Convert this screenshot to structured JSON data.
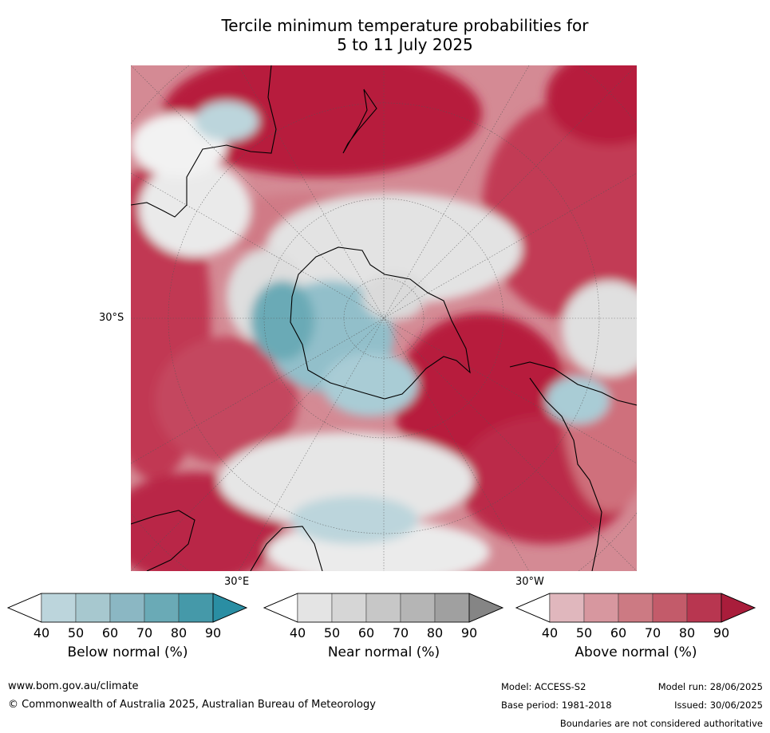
{
  "title": {
    "line1": "Tercile minimum temperature probabilities for",
    "line2": "5 to 11 July 2025"
  },
  "map": {
    "lat_label": "30°S",
    "lon_left_label": "30°E",
    "lon_right_label": "30°W"
  },
  "colorbars": [
    {
      "name": "below",
      "title": "Below normal (%)",
      "ticks": [
        "40",
        "50",
        "60",
        "70",
        "80",
        "90"
      ],
      "colors": [
        "#ffffff",
        "#bcd5dc",
        "#a7c8cf",
        "#8bb7c3",
        "#6aaab6",
        "#4599a9",
        "#2a8ea3"
      ]
    },
    {
      "name": "near",
      "title": "Near normal (%)",
      "ticks": [
        "40",
        "50",
        "60",
        "70",
        "80",
        "90"
      ],
      "colors": [
        "#ffffff",
        "#e4e4e4",
        "#d6d6d6",
        "#c7c7c7",
        "#b5b5b5",
        "#a0a0a0",
        "#858585"
      ]
    },
    {
      "name": "above",
      "title": "Above normal (%)",
      "ticks": [
        "40",
        "50",
        "60",
        "70",
        "80",
        "90"
      ],
      "colors": [
        "#ffffff",
        "#e0b7bd",
        "#d7979f",
        "#cc7a83",
        "#c35b6a",
        "#b83650",
        "#a91d3b"
      ]
    }
  ],
  "footer": {
    "website": "www.bom.gov.au/climate",
    "copyright": "© Commonwealth of Australia 2025, Australian Bureau of Meteorology",
    "model": "Model: ACCESS-S2",
    "base_period": "Base period: 1981-2018",
    "model_run": "Model run: 28/06/2025",
    "issued": "Issued: 30/06/2025",
    "disclaimer": "Boundaries are not considered authoritative"
  },
  "colors": {
    "above_dark": "#b71c3c",
    "above_mid": "#cc6b78",
    "above_light": "#dfa8b0",
    "near": "#dcdcdc",
    "below": "#8fbcc7"
  }
}
